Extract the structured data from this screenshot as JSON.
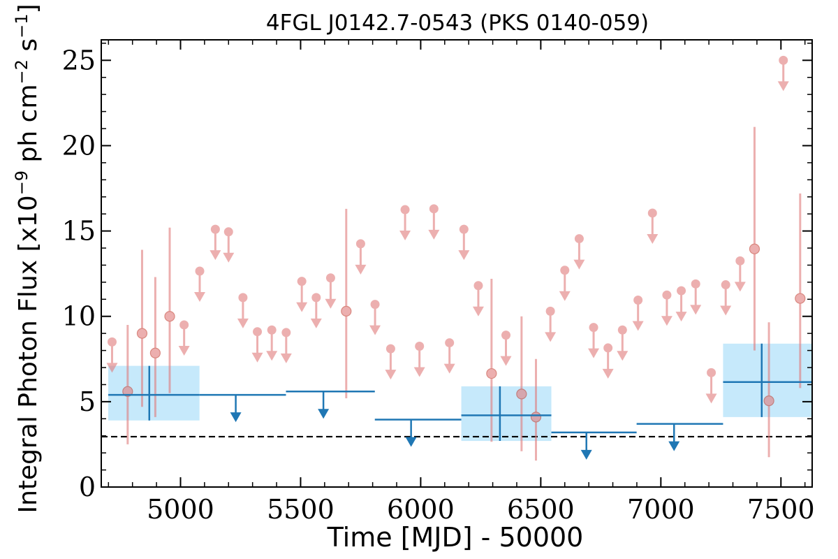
{
  "colors": {
    "bin_line": "#1f77b4",
    "bin_shade": "#c6e9fb",
    "short_point": "#e07b7b",
    "baseline": "#000000"
  },
  "chart_data": {
    "type": "scatter",
    "title": "4FGL J0142.7-0543 (PKS 0140-059)",
    "xlabel": "Time [MJD] - 50000",
    "ylabel": "Integral Photon Flux [x10^-9 ph cm^-2 s^-1]",
    "ylabel_parts": {
      "pre": "Integral Photon Flux [x10",
      "exp1": "−9",
      "mid": " ph cm",
      "exp2": "−2",
      "mid2": " s",
      "exp3": "−1",
      "post": "]"
    },
    "xlim": [
      4670,
      7630
    ],
    "ylim": [
      0,
      26.2
    ],
    "xticks": [
      5000,
      5500,
      6000,
      6500,
      7000,
      7500
    ],
    "xtick_labels": [
      "5000",
      "5500",
      "6000",
      "6500",
      "7000",
      "7500"
    ],
    "yticks": [
      0,
      5,
      10,
      15,
      20,
      25
    ],
    "ytick_labels": [
      "0",
      "5",
      "10",
      "15",
      "20",
      "25"
    ],
    "grid": false,
    "baseline_y": 2.95,
    "series": [
      {
        "kind": "long_bins",
        "detections": [
          {
            "x": 4870,
            "x_lo": 4670,
            "x_hi": 5050,
            "y": 5.4,
            "y_lo": 3.9,
            "y_hi": 7.1
          },
          {
            "x": 6330,
            "x_lo": 6140,
            "x_hi": 6515,
            "y": 4.2,
            "y_lo": 2.7,
            "y_hi": 5.9
          },
          {
            "x": 7420,
            "x_lo": 7230,
            "x_hi": 7600,
            "y": 6.15,
            "y_lo": 4.1,
            "y_hi": 8.4
          }
        ],
        "upper_limits": [
          {
            "x": 5230,
            "x_lo": 5050,
            "x_hi": 5410,
            "y": 5.4
          },
          {
            "x": 5595,
            "x_lo": 5410,
            "x_hi": 5780,
            "y": 5.6
          },
          {
            "x": 5960,
            "x_lo": 5780,
            "x_hi": 6140,
            "y": 3.95
          },
          {
            "x": 6690,
            "x_lo": 6515,
            "x_hi": 6870,
            "y": 3.2
          },
          {
            "x": 7055,
            "x_lo": 6870,
            "x_hi": 7230,
            "y": 3.7
          }
        ]
      },
      {
        "kind": "short_bins",
        "detections": [
          {
            "x": 4780,
            "y": 5.6,
            "y_lo": 2.5,
            "y_hi": 9.5
          },
          {
            "x": 4840,
            "y": 9.0,
            "y_lo": 4.7,
            "y_hi": 13.9
          },
          {
            "x": 4895,
            "y": 7.85,
            "y_lo": 4.1,
            "y_hi": 12.3
          },
          {
            "x": 4955,
            "y": 10.0,
            "y_lo": 5.5,
            "y_hi": 15.2
          },
          {
            "x": 5690,
            "y": 10.3,
            "y_lo": 5.2,
            "y_hi": 16.3
          },
          {
            "x": 6295,
            "y": 6.65,
            "y_lo": 2.65,
            "y_hi": 12.2
          },
          {
            "x": 6420,
            "y": 5.45,
            "y_lo": 2.1,
            "y_hi": 10.0
          },
          {
            "x": 6480,
            "y": 4.1,
            "y_lo": 1.55,
            "y_hi": 7.5
          },
          {
            "x": 7390,
            "y": 13.95,
            "y_lo": 8.0,
            "y_hi": 21.1
          },
          {
            "x": 7450,
            "y": 5.05,
            "y_lo": 1.75,
            "y_hi": 9.65
          },
          {
            "x": 7580,
            "y": 11.05,
            "y_lo": 5.8,
            "y_hi": 17.2
          }
        ],
        "upper_limits": [
          {
            "x": 4715,
            "y": 8.5
          },
          {
            "x": 5015,
            "y": 9.5
          },
          {
            "x": 5080,
            "y": 12.65
          },
          {
            "x": 5145,
            "y": 15.1
          },
          {
            "x": 5200,
            "y": 14.95
          },
          {
            "x": 5260,
            "y": 11.1
          },
          {
            "x": 5320,
            "y": 9.1
          },
          {
            "x": 5380,
            "y": 9.2
          },
          {
            "x": 5440,
            "y": 9.05
          },
          {
            "x": 5505,
            "y": 12.05
          },
          {
            "x": 5565,
            "y": 11.1
          },
          {
            "x": 5625,
            "y": 12.25
          },
          {
            "x": 5750,
            "y": 14.25
          },
          {
            "x": 5810,
            "y": 10.7
          },
          {
            "x": 5875,
            "y": 8.1
          },
          {
            "x": 5935,
            "y": 16.25
          },
          {
            "x": 5995,
            "y": 8.25
          },
          {
            "x": 6055,
            "y": 16.3
          },
          {
            "x": 6120,
            "y": 8.45
          },
          {
            "x": 6180,
            "y": 15.1
          },
          {
            "x": 6240,
            "y": 11.8
          },
          {
            "x": 6355,
            "y": 8.9
          },
          {
            "x": 6540,
            "y": 10.3
          },
          {
            "x": 6600,
            "y": 12.7
          },
          {
            "x": 6660,
            "y": 14.55
          },
          {
            "x": 6720,
            "y": 9.35
          },
          {
            "x": 6780,
            "y": 8.15
          },
          {
            "x": 6840,
            "y": 9.2
          },
          {
            "x": 6905,
            "y": 10.95
          },
          {
            "x": 6965,
            "y": 16.05
          },
          {
            "x": 7025,
            "y": 11.25
          },
          {
            "x": 7085,
            "y": 11.5
          },
          {
            "x": 7145,
            "y": 11.9
          },
          {
            "x": 7210,
            "y": 6.7
          },
          {
            "x": 7270,
            "y": 11.85
          },
          {
            "x": 7330,
            "y": 13.25
          },
          {
            "x": 7510,
            "y": 25.0
          }
        ]
      }
    ]
  }
}
